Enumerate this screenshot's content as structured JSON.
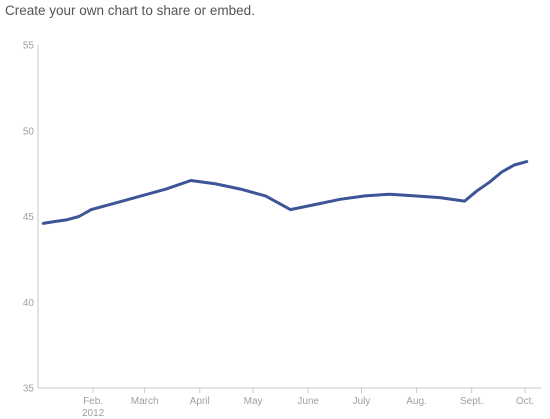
{
  "header": {
    "title": "Create your own chart to share or embed."
  },
  "chart_data": {
    "type": "line",
    "title": "",
    "xlabel": "",
    "ylabel": "",
    "ylim": [
      35,
      55
    ],
    "yticks": [
      35,
      40,
      45,
      50,
      55
    ],
    "xlim": [
      "2012-01-01",
      "2012-10-10"
    ],
    "xticks": [
      {
        "date": "2012-02-01",
        "label": "Feb.",
        "sublabel": "2012"
      },
      {
        "date": "2012-03-01",
        "label": "March",
        "sublabel": ""
      },
      {
        "date": "2012-04-01",
        "label": "April",
        "sublabel": ""
      },
      {
        "date": "2012-05-01",
        "label": "May",
        "sublabel": ""
      },
      {
        "date": "2012-06-01",
        "label": "June",
        "sublabel": ""
      },
      {
        "date": "2012-07-01",
        "label": "July",
        "sublabel": ""
      },
      {
        "date": "2012-08-01",
        "label": "Aug.",
        "sublabel": ""
      },
      {
        "date": "2012-09-01",
        "label": "Sept.",
        "sublabel": ""
      },
      {
        "date": "2012-10-01",
        "label": "Oct.",
        "sublabel": ""
      }
    ],
    "grid": false,
    "legend": "none",
    "series": [
      {
        "color": "#3d5597",
        "points": [
          {
            "x": "2012-01-04",
            "y": 44.6
          },
          {
            "x": "2012-01-10",
            "y": 44.7
          },
          {
            "x": "2012-01-17",
            "y": 44.8
          },
          {
            "x": "2012-01-24",
            "y": 45.0
          },
          {
            "x": "2012-01-31",
            "y": 45.4
          },
          {
            "x": "2012-02-14",
            "y": 45.8
          },
          {
            "x": "2012-02-28",
            "y": 46.2
          },
          {
            "x": "2012-03-13",
            "y": 46.6
          },
          {
            "x": "2012-03-27",
            "y": 47.1
          },
          {
            "x": "2012-04-10",
            "y": 46.9
          },
          {
            "x": "2012-04-24",
            "y": 46.6
          },
          {
            "x": "2012-05-08",
            "y": 46.2
          },
          {
            "x": "2012-05-22",
            "y": 45.4
          },
          {
            "x": "2012-06-05",
            "y": 45.7
          },
          {
            "x": "2012-06-19",
            "y": 46.0
          },
          {
            "x": "2012-07-03",
            "y": 46.2
          },
          {
            "x": "2012-07-17",
            "y": 46.3
          },
          {
            "x": "2012-07-31",
            "y": 46.2
          },
          {
            "x": "2012-08-14",
            "y": 46.1
          },
          {
            "x": "2012-08-28",
            "y": 45.9
          },
          {
            "x": "2012-09-04",
            "y": 46.5
          },
          {
            "x": "2012-09-11",
            "y": 47.0
          },
          {
            "x": "2012-09-18",
            "y": 47.6
          },
          {
            "x": "2012-09-25",
            "y": 48.0
          },
          {
            "x": "2012-10-02",
            "y": 48.2
          }
        ]
      }
    ]
  }
}
